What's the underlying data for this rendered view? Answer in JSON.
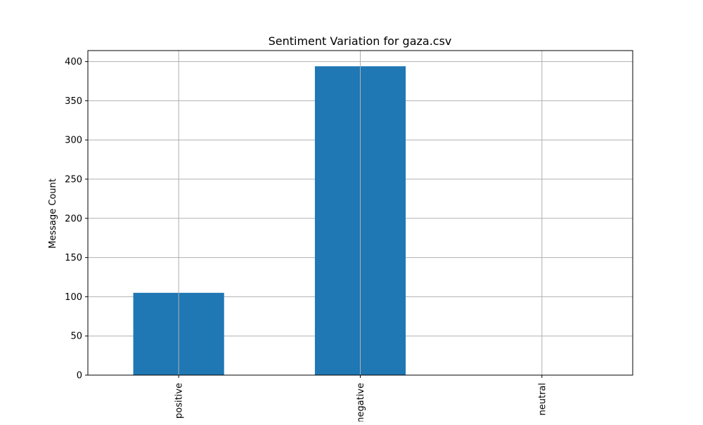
{
  "chart_data": {
    "type": "bar",
    "title": "Sentiment Variation for gaza.csv",
    "xlabel": "",
    "ylabel": "Message Count",
    "categories": [
      "positive",
      "negative",
      "neutral"
    ],
    "values": [
      105,
      394,
      0
    ],
    "ylim": [
      0,
      414
    ],
    "yticks": [
      0,
      50,
      100,
      150,
      200,
      250,
      300,
      350,
      400
    ],
    "grid": true,
    "bar_color": "#1f77b4"
  }
}
